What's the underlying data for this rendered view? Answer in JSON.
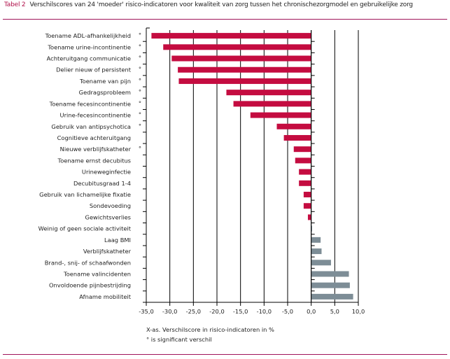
{
  "header": {
    "table_label": "Tabel 2",
    "title": "Verschilscores van 24 'moeder' risico-indicatoren voor kwaliteit van zorg tussen het chronischezorgmodel en gebruikelijke zorg"
  },
  "footnotes": {
    "axis_note": "X-as. Verschilscore in risico-indicatoren in %",
    "significance_note": "° is significant verschil"
  },
  "colors": {
    "negative_bar": "#c40c40",
    "positive_bar": "#7d8d96",
    "accent_rule": "#a0145a"
  },
  "chart_data": {
    "type": "bar",
    "orientation": "horizontal",
    "title": "Verschilscores van 24 'moeder' risico-indicatoren voor kwaliteit van zorg tussen het chronischezorgmodel en gebruikelijke zorg",
    "xlabel": "X-as. Verschilscore in risico-indicatoren in %",
    "ylabel": "",
    "xlim": [
      -35,
      10
    ],
    "xticks": [
      -35,
      -30,
      -25,
      -20,
      -15,
      -10,
      -5,
      0,
      5,
      10
    ],
    "xtick_labels": [
      "-35,0",
      "-30,0",
      "-25,0",
      "-20,0",
      "-15,0",
      "-10,0",
      "-5,0",
      "0,0",
      "5,0",
      "10,0"
    ],
    "grid": "vertical",
    "significance_marker": "°",
    "categories": [
      "Toename ADL-afhankelijkheid",
      "Toename urine-incontinentie",
      "Achteruitgang communicatie",
      "Delier nieuw of persistent",
      "Toename van pijn",
      "Gedragsprobleem",
      "Toename fecesincontinentie",
      "Urine-fecesincontinentie",
      "Gebruik van antipsychotica",
      "Cognitieve achteruitgang",
      "Nieuwe verblijfskatheter",
      "Toename ernst decubitus",
      "Urineweginfectie",
      "Decubitusgraad 1-4",
      "Gebruik van lichamelijke fixatie",
      "Sondevoeding",
      "Gewichtsverlies",
      "Weinig of geen sociale activiteit",
      "Laag BMI",
      "Verblijfskatheter",
      "Brand-, snij- of schaafwonden",
      "Toename valincidenten",
      "Onvoldoende pijnbestrijding",
      "Afname mobiliteit"
    ],
    "significant": [
      true,
      true,
      true,
      true,
      true,
      true,
      true,
      true,
      true,
      false,
      true,
      false,
      false,
      false,
      false,
      false,
      false,
      false,
      false,
      false,
      false,
      false,
      false,
      false
    ],
    "values": [
      -33.9,
      -31.4,
      -29.6,
      -28.3,
      -28.1,
      -18.0,
      -16.5,
      -12.9,
      -7.3,
      -5.8,
      -3.7,
      -3.4,
      -2.6,
      -2.6,
      -1.6,
      -1.6,
      -0.7,
      0.2,
      2.0,
      2.2,
      4.2,
      8.0,
      8.2,
      8.9
    ]
  }
}
